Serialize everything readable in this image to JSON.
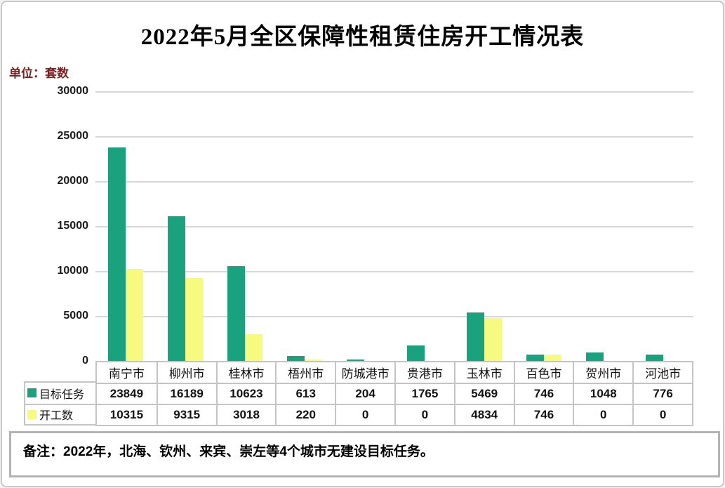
{
  "title": "2022年5月全区保障性租赁住房开工情况表",
  "unit_label": "单位：套数",
  "note": "备注：2022年，北海、钦州、来宾、崇左等4个城市无建设目标任务。",
  "colors": {
    "target_green": "#1aa17e",
    "started_yellow": "#f6fa7e",
    "gridline": "#d9d9d9",
    "table_border": "#c4c4c4",
    "unit_text": "#7b2020"
  },
  "chart_data": {
    "type": "bar",
    "categories": [
      "南宁市",
      "柳州市",
      "桂林市",
      "梧州市",
      "防城港市",
      "贵港市",
      "玉林市",
      "百色市",
      "贺州市",
      "河池市"
    ],
    "series": [
      {
        "name": "目标任务",
        "color_key": "target_green",
        "values": [
          23849,
          16189,
          10623,
          613,
          204,
          1765,
          5469,
          746,
          1048,
          776
        ]
      },
      {
        "name": "开工数",
        "color_key": "started_yellow",
        "values": [
          10315,
          9315,
          3018,
          220,
          0,
          0,
          4834,
          746,
          0,
          0
        ]
      }
    ],
    "title": "2022年5月全区保障性租赁住房开工情况表",
    "xlabel": "",
    "ylabel": "套数",
    "ylim": [
      0,
      30000
    ],
    "ytick_step": 5000,
    "grid": true,
    "legend_position": "table-left"
  }
}
